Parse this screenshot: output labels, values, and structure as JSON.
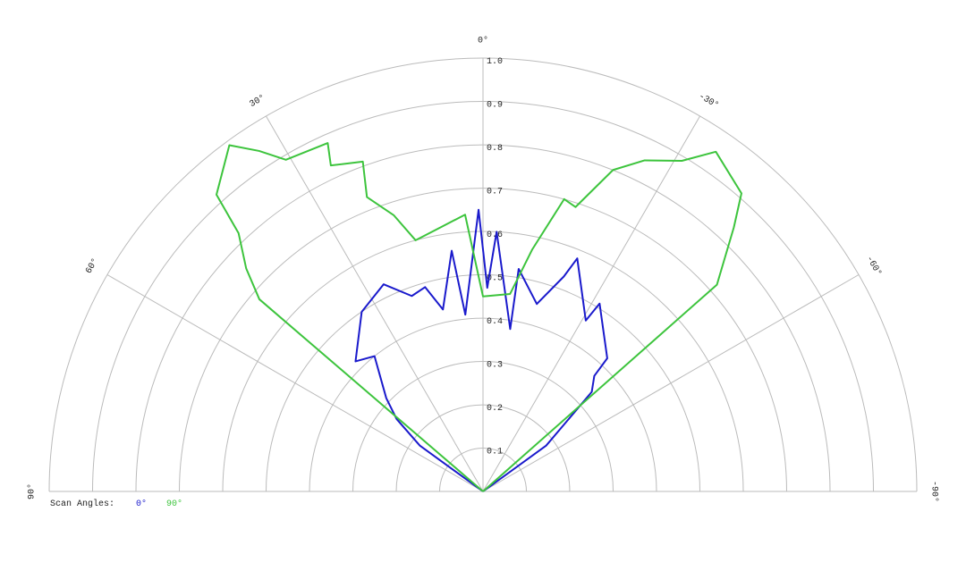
{
  "chart_data": {
    "type": "polar",
    "rlim": [
      0,
      1
    ],
    "rticks": [
      0.1,
      0.2,
      0.3,
      0.4,
      0.5,
      0.6,
      0.7,
      0.8,
      0.9,
      {
        "value": 1,
        "label": "1.0"
      }
    ],
    "thetalim": [
      -90,
      90
    ],
    "thetaticks": [
      {
        "value": 90,
        "label": "90°"
      },
      {
        "value": 60,
        "label": "60°"
      },
      {
        "value": 30,
        "label": "30°"
      },
      {
        "value": 0,
        "label": "0°"
      },
      {
        "value": -30,
        "label": "-30°"
      },
      {
        "value": -60,
        "label": "-60°"
      },
      {
        "value": -90,
        "label": "-90°"
      }
    ],
    "grid": true,
    "legend_title": "Scan Angles:",
    "series": [
      {
        "name": "0°",
        "color": "#1a1acc",
        "theta": [
          90,
          54,
          50,
          46,
          38.7,
          44.4,
          34,
          25.6,
          20,
          15.8,
          12.4,
          7.4,
          5.7,
          0.9,
          -1.2,
          -3,
          -9.5,
          -9.1,
          -16,
          -20.6,
          -22,
          -31,
          -31.8,
          -43,
          -43.9,
          -47.5,
          -54,
          -90
        ],
        "r": [
          0,
          0.18,
          0.26,
          0.31,
          0.4,
          0.42,
          0.5,
          0.53,
          0.48,
          0.49,
          0.43,
          0.56,
          0.41,
          0.65,
          0.47,
          0.6,
          0.38,
          0.52,
          0.45,
          0.53,
          0.58,
          0.46,
          0.51,
          0.42,
          0.37,
          0.34,
          0.18,
          0
        ]
      },
      {
        "name": "90°",
        "color": "#3dc43d",
        "theta": [
          90,
          49.3,
          46.7,
          43.4,
          41.9,
          36.2,
          33.3,
          30.7,
          24,
          25,
          20,
          21.5,
          17.9,
          15,
          3.7,
          0,
          -7.8,
          -11.5,
          -15.5,
          -18,
          -22,
          -26,
          -31,
          -34.4,
          -40.9,
          -43.5,
          -48.5,
          -90
        ],
        "r": [
          0,
          0.68,
          0.75,
          0.82,
          0.92,
          0.99,
          0.94,
          0.89,
          0.88,
          0.83,
          0.81,
          0.73,
          0.67,
          0.6,
          0.64,
          0.45,
          0.46,
          0.57,
          0.7,
          0.69,
          0.8,
          0.85,
          0.89,
          0.95,
          0.91,
          0.84,
          0.72,
          0
        ]
      }
    ]
  }
}
